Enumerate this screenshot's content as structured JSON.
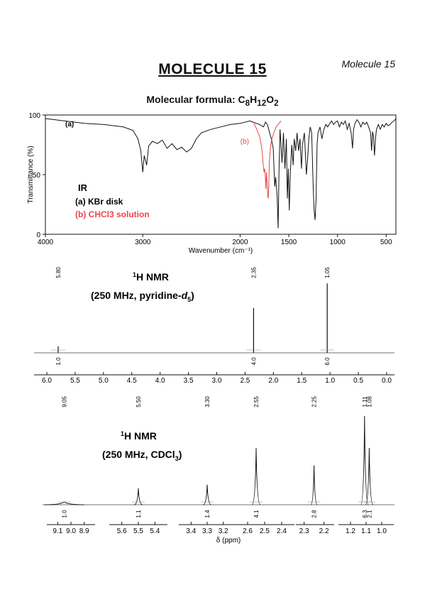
{
  "page": {
    "title": "MOLECULE 15",
    "corner_label": "Molecule 15",
    "formula_label": "Molecular formula:",
    "formula": "C8H12O2"
  },
  "chart_data": [
    {
      "type": "line",
      "name": "IR",
      "ylabel": "Transmittance (%)",
      "xlabel": "Wavenumber (cm⁻¹)",
      "xlim": [
        4000,
        400
      ],
      "ylim": [
        0,
        100
      ],
      "x_ticks": [
        4000,
        3000,
        2000,
        1500,
        1000,
        500
      ],
      "y_ticks": [
        0,
        50,
        100
      ],
      "legend": {
        "title": "IR",
        "a": "(a) KBr disk",
        "b": "(b) CHCl3 solution"
      },
      "series": [
        {
          "label": "(a)",
          "color": "#111111",
          "points": [
            [
              4000,
              97
            ],
            [
              3800,
              95
            ],
            [
              3600,
              93
            ],
            [
              3400,
              92
            ],
            [
              3200,
              90
            ],
            [
              3100,
              87
            ],
            [
              3050,
              80
            ],
            [
              3020,
              70
            ],
            [
              3000,
              52
            ],
            [
              2985,
              66
            ],
            [
              2960,
              58
            ],
            [
              2940,
              74
            ],
            [
              2900,
              78
            ],
            [
              2850,
              76
            ],
            [
              2800,
              79
            ],
            [
              2750,
              72
            ],
            [
              2700,
              76
            ],
            [
              2650,
              71
            ],
            [
              2600,
              73
            ],
            [
              2550,
              69
            ],
            [
              2500,
              72
            ],
            [
              2450,
              80
            ],
            [
              2400,
              85
            ],
            [
              2300,
              88
            ],
            [
              2200,
              90
            ],
            [
              2100,
              92
            ],
            [
              2000,
              93
            ],
            [
              1900,
              95
            ],
            [
              1800,
              92
            ],
            [
              1760,
              90
            ],
            [
              1740,
              94
            ],
            [
              1720,
              92
            ],
            [
              1700,
              86
            ],
            [
              1680,
              80
            ],
            [
              1660,
              72
            ],
            [
              1645,
              40
            ],
            [
              1635,
              48
            ],
            [
              1620,
              32
            ],
            [
              1610,
              5
            ],
            [
              1600,
              55
            ],
            [
              1590,
              88
            ],
            [
              1570,
              60
            ],
            [
              1555,
              85
            ],
            [
              1540,
              55
            ],
            [
              1525,
              80
            ],
            [
              1515,
              30
            ],
            [
              1505,
              55
            ],
            [
              1495,
              20
            ],
            [
              1485,
              50
            ],
            [
              1470,
              75
            ],
            [
              1455,
              58
            ],
            [
              1445,
              80
            ],
            [
              1430,
              70
            ],
            [
              1415,
              85
            ],
            [
              1400,
              70
            ],
            [
              1385,
              80
            ],
            [
              1370,
              55
            ],
            [
              1360,
              75
            ],
            [
              1340,
              85
            ],
            [
              1320,
              50
            ],
            [
              1305,
              65
            ],
            [
              1295,
              80
            ],
            [
              1280,
              90
            ],
            [
              1265,
              85
            ],
            [
              1250,
              40
            ],
            [
              1240,
              20
            ],
            [
              1230,
              12
            ],
            [
              1220,
              30
            ],
            [
              1210,
              75
            ],
            [
              1200,
              85
            ],
            [
              1180,
              90
            ],
            [
              1160,
              80
            ],
            [
              1140,
              88
            ],
            [
              1120,
              92
            ],
            [
              1100,
              90
            ],
            [
              1080,
              93
            ],
            [
              1060,
              95
            ],
            [
              1040,
              92
            ],
            [
              1020,
              94
            ],
            [
              1000,
              95
            ],
            [
              980,
              90
            ],
            [
              960,
              94
            ],
            [
              940,
              92
            ],
            [
              920,
              95
            ],
            [
              900,
              88
            ],
            [
              880,
              93
            ],
            [
              860,
              85
            ],
            [
              845,
              72
            ],
            [
              835,
              88
            ],
            [
              820,
              93
            ],
            [
              800,
              96
            ],
            [
              780,
              94
            ],
            [
              760,
              90
            ],
            [
              740,
              94
            ],
            [
              720,
              92
            ],
            [
              700,
              94
            ],
            [
              680,
              90
            ],
            [
              660,
              85
            ],
            [
              650,
              70
            ],
            [
              640,
              86
            ],
            [
              630,
              82
            ],
            [
              620,
              66
            ],
            [
              610,
              80
            ],
            [
              600,
              88
            ],
            [
              580,
              92
            ],
            [
              560,
              88
            ],
            [
              540,
              92
            ],
            [
              520,
              90
            ],
            [
              500,
              93
            ],
            [
              480,
              91
            ],
            [
              460,
              92
            ],
            [
              440,
              94
            ],
            [
              420,
              95
            ],
            [
              400,
              97
            ]
          ]
        },
        {
          "label": "(b)",
          "color": "#e8474e",
          "points": [
            [
              1860,
              93
            ],
            [
              1840,
              90
            ],
            [
              1820,
              86
            ],
            [
              1800,
              82
            ],
            [
              1785,
              76
            ],
            [
              1775,
              70
            ],
            [
              1765,
              60
            ],
            [
              1755,
              52
            ],
            [
              1748,
              55
            ],
            [
              1742,
              50
            ],
            [
              1736,
              38
            ],
            [
              1730,
              52
            ],
            [
              1722,
              42
            ],
            [
              1716,
              32
            ],
            [
              1712,
              30
            ],
            [
              1706,
              40
            ],
            [
              1700,
              60
            ],
            [
              1690,
              72
            ],
            [
              1680,
              78
            ],
            [
              1665,
              82
            ],
            [
              1650,
              86
            ],
            [
              1630,
              90
            ],
            [
              1600,
              93
            ],
            [
              1580,
              95
            ]
          ]
        }
      ]
    },
    {
      "type": "line",
      "name": "1H NMR (pyridine)",
      "nucleus_sup": "1",
      "nucleus": "H NMR",
      "conditions_prefix": "(250 MHz, pyridine-",
      "conditions_italic": "d",
      "conditions_sub": "5",
      "conditions_suffix": ")",
      "xlim": [
        6.0,
        0.0
      ],
      "x_ticks": [
        "6.0",
        "5.5",
        "5.0",
        "4.5",
        "4.0",
        "3.5",
        "3.0",
        "2.5",
        "2.0",
        "1.5",
        "1.0",
        "0.5",
        "0.0"
      ],
      "peaks": [
        {
          "shift": 5.8,
          "label": "5.80",
          "height": 0.08,
          "width": 0.015,
          "integral": "1.0"
        },
        {
          "shift": 2.35,
          "label": "2.35",
          "height": 0.55,
          "width": 0.008,
          "integral": "4.0"
        },
        {
          "shift": 1.05,
          "label": "1.05",
          "height": 0.85,
          "width": 0.008,
          "integral": "6.0"
        }
      ]
    },
    {
      "type": "line",
      "name": "1H NMR (CDCl3)",
      "nucleus_sup": "1",
      "nucleus": "H NMR",
      "conditions_prefix": "(250 MHz, CDCl",
      "conditions_sub": "3",
      "conditions_suffix": ")",
      "xlabel": "δ (ppm)",
      "segments": [
        {
          "range": [
            9.15,
            8.85
          ],
          "ticks": [
            "9.1",
            "9.0",
            "8.9"
          ]
        },
        {
          "range": [
            5.65,
            5.35
          ],
          "ticks": [
            "5.6",
            "5.5",
            "5.4"
          ]
        },
        {
          "range": [
            3.45,
            3.15
          ],
          "ticks": [
            "3.4",
            "3.3",
            "3.2"
          ]
        },
        {
          "range": [
            2.65,
            2.35
          ],
          "ticks": [
            "2.6",
            "2.5",
            "2.4"
          ]
        },
        {
          "range": [
            2.32,
            2.17
          ],
          "ticks": [
            "2.3",
            "2.2"
          ]
        },
        {
          "range": [
            1.25,
            0.95
          ],
          "ticks": [
            "1.2",
            "1.1",
            "1.0"
          ]
        }
      ],
      "peaks": [
        {
          "shift": 9.05,
          "label": "9.05",
          "height": 0.03,
          "width": 0.025,
          "integral": "1.0",
          "segment": 0
        },
        {
          "shift": 5.5,
          "label": "5.50",
          "height": 0.18,
          "width": 0.004,
          "integral": "1.1",
          "segment": 1
        },
        {
          "shift": 3.3,
          "label": "3.30",
          "height": 0.22,
          "width": 0.004,
          "integral": "1.4",
          "segment": 2
        },
        {
          "shift": 2.55,
          "label": "2.55",
          "height": 0.62,
          "width": 0.004,
          "integral": "4.1",
          "segment": 3
        },
        {
          "shift": 2.25,
          "label": "2.25",
          "height": 0.43,
          "width": 0.002,
          "integral": "2.8",
          "segment": 4
        },
        {
          "shift": 1.11,
          "label": "1.11",
          "height": 0.97,
          "width": 0.004,
          "integral": "6.3",
          "segment": 5
        },
        {
          "shift": 1.08,
          "label": "1.08",
          "height": 0.62,
          "width": 0.004,
          "integral": "2.1",
          "segment": 5
        }
      ]
    }
  ]
}
